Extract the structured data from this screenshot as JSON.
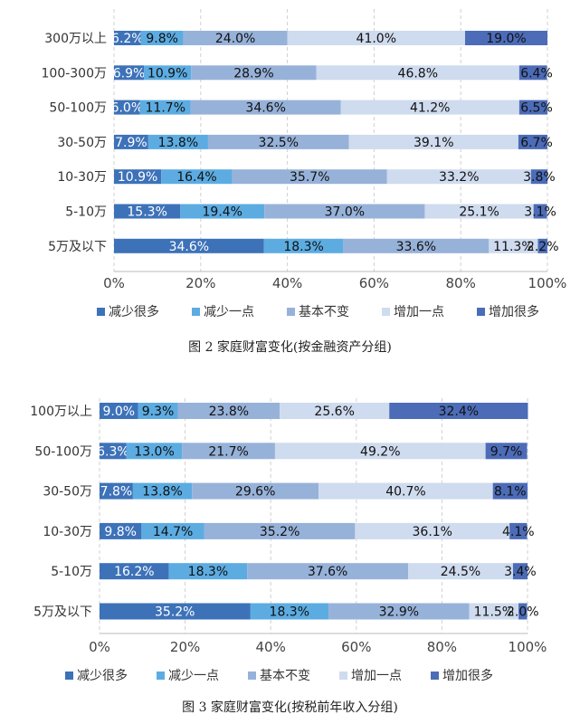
{
  "legend": [
    "减少很多",
    "减少一点",
    "基本不变",
    "增加一点",
    "增加很多"
  ],
  "colors": [
    "#3d72b9",
    "#5cace2",
    "#97b2d9",
    "#cfdbee",
    "#4c6cb8"
  ],
  "chart_data": [
    {
      "type": "bar",
      "orientation": "horizontal",
      "stacked": true,
      "caption": "图  2 家庭财富变化(按金融资产分组)",
      "categories": [
        "300万以上",
        "100-300万",
        "50-100万",
        "30-50万",
        "10-30万",
        "5-10万",
        "5万及以下"
      ],
      "xlim": [
        0,
        100
      ],
      "xticks": [
        "0%",
        "20%",
        "40%",
        "60%",
        "80%",
        "100%"
      ],
      "grid": true,
      "legend_position": "bottom",
      "series": [
        {
          "name": "减少很多",
          "values": [
            6.2,
            6.9,
            6.0,
            7.9,
            10.9,
            15.3,
            34.6
          ]
        },
        {
          "name": "减少一点",
          "values": [
            9.8,
            10.9,
            11.7,
            13.8,
            16.4,
            19.4,
            18.3
          ]
        },
        {
          "name": "基本不变",
          "values": [
            24.0,
            28.9,
            34.6,
            32.5,
            35.7,
            37.0,
            33.6
          ]
        },
        {
          "name": "增加一点",
          "values": [
            41.0,
            46.8,
            41.2,
            39.1,
            33.2,
            25.1,
            11.3
          ]
        },
        {
          "name": "增加很多",
          "values": [
            19.0,
            6.4,
            6.5,
            6.7,
            3.8,
            3.1,
            2.2
          ]
        }
      ]
    },
    {
      "type": "bar",
      "orientation": "horizontal",
      "stacked": true,
      "caption": "图  3 家庭财富变化(按税前年收入分组)",
      "categories": [
        "100万以上",
        "50-100万",
        "30-50万",
        "10-30万",
        "5-10万",
        "5万及以下"
      ],
      "xlim": [
        0,
        100
      ],
      "xticks": [
        "0%",
        "20%",
        "40%",
        "60%",
        "80%",
        "100%"
      ],
      "grid": true,
      "legend_position": "bottom",
      "series": [
        {
          "name": "减少很多",
          "values": [
            9.0,
            6.3,
            7.8,
            9.8,
            16.2,
            35.2
          ]
        },
        {
          "name": "减少一点",
          "values": [
            9.3,
            13.0,
            13.8,
            14.7,
            18.3,
            18.3
          ]
        },
        {
          "name": "基本不变",
          "values": [
            23.8,
            21.7,
            29.6,
            35.2,
            37.6,
            32.9
          ]
        },
        {
          "name": "增加一点",
          "values": [
            25.6,
            49.2,
            40.7,
            36.1,
            24.5,
            11.5
          ]
        },
        {
          "name": "增加很多",
          "values": [
            32.4,
            9.7,
            8.1,
            4.1,
            3.4,
            2.0
          ]
        }
      ]
    }
  ]
}
